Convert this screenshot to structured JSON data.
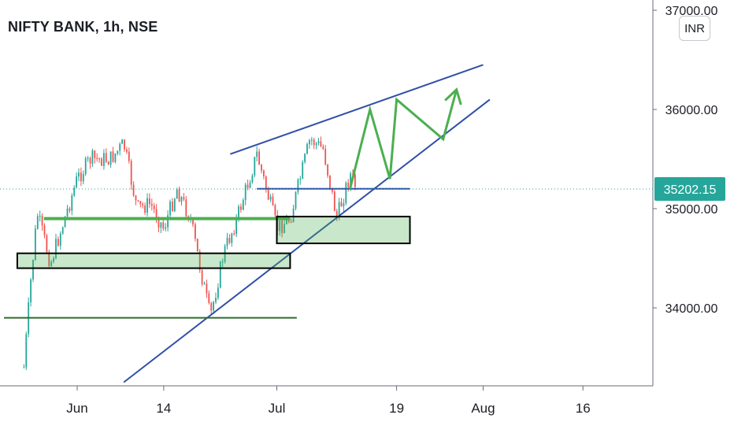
{
  "header": {
    "title": "NIFTY BANK, 1h, NSE",
    "currency": "INR"
  },
  "price_tag": {
    "value": "35202.15",
    "color": "#26a69a"
  },
  "chart_data": {
    "type": "line",
    "title": "NIFTY BANK, 1h, NSE",
    "xlabel": "",
    "ylabel": "",
    "ylim": [
      33200,
      37050
    ],
    "x_ticks": [
      "Jun",
      "14",
      "Jul",
      "19",
      "Aug",
      "16"
    ],
    "y_ticks": [
      "37000.00",
      "36000.00",
      "35000.00",
      "34000.00"
    ],
    "last_price": 35202.15,
    "grid": false,
    "colors": {
      "up": "#26a69a",
      "down": "#ef5350",
      "channel": "#2f4fa8",
      "zone": "#4caf50",
      "projection": "#4caf50",
      "support": "#2e6b2e"
    },
    "price_series": [
      {
        "day": "May 24",
        "close": 33400
      },
      {
        "day": "May 25",
        "close": 34250
      },
      {
        "day": "May 26",
        "close": 34950
      },
      {
        "day": "May 28",
        "close": 34450
      },
      {
        "day": "Jun 1",
        "close": 35300
      },
      {
        "day": "Jun 3",
        "close": 35500
      },
      {
        "day": "Jun 6",
        "close": 35500
      },
      {
        "day": "Jun 8",
        "close": 35650
      },
      {
        "day": "Jun 10",
        "close": 35000
      },
      {
        "day": "Jun 12",
        "close": 35050
      },
      {
        "day": "Jun 14",
        "close": 34800
      },
      {
        "day": "Jun 16",
        "close": 35200
      },
      {
        "day": "Jun 18",
        "close": 34900
      },
      {
        "day": "Jun 21",
        "close": 33900
      },
      {
        "day": "Jun 23",
        "close": 34550
      },
      {
        "day": "Jun 25",
        "close": 34900
      },
      {
        "day": "Jun 28",
        "close": 35550
      },
      {
        "day": "Jul 1",
        "close": 34800
      },
      {
        "day": "Jul 3",
        "close": 34900
      },
      {
        "day": "Jul 6",
        "close": 35700
      },
      {
        "day": "Jul 8",
        "close": 35600
      },
      {
        "day": "Jul 10",
        "close": 34900
      },
      {
        "day": "Jul 12",
        "close": 35350
      },
      {
        "day": "Jul 13",
        "close": 35200
      }
    ],
    "trendlines": [
      {
        "name": "channel-upper",
        "from": {
          "day": "Jun 24",
          "price": 35550
        },
        "to": {
          "day": "Aug 1",
          "price": 36450
        }
      },
      {
        "name": "channel-lower",
        "from": {
          "day": "Jun 8",
          "price": 33250
        },
        "to": {
          "day": "Aug 2",
          "price": 36100
        }
      },
      {
        "name": "resistance-35200",
        "from": {
          "day": "Jun 28",
          "price": 35200
        },
        "to": {
          "day": "Jul 21",
          "price": 35200
        }
      },
      {
        "name": "support-34900",
        "from": {
          "day": "May 27",
          "price": 34900
        },
        "to": {
          "day": "Jul 3",
          "price": 34900
        }
      },
      {
        "name": "support-33900",
        "from": {
          "day": "May 21",
          "price": 33900
        },
        "to": {
          "day": "Jul 4",
          "price": 33900
        }
      }
    ],
    "zones": [
      {
        "name": "demand-zone-1",
        "from": {
          "day": "May 23",
          "price": 34550
        },
        "to": {
          "day": "Jul 3",
          "price": 34400
        }
      },
      {
        "name": "demand-zone-2",
        "from": {
          "day": "Jul 1",
          "price": 34920
        },
        "to": {
          "day": "Jul 21",
          "price": 34650
        }
      }
    ],
    "projection": [
      {
        "day": "Jul 12",
        "price": 35200
      },
      {
        "day": "Jul 15",
        "price": 36000
      },
      {
        "day": "Jul 18",
        "price": 35300
      },
      {
        "day": "Jul 19",
        "price": 36100
      },
      {
        "day": "Jul 26",
        "price": 35700
      },
      {
        "day": "Jul 28",
        "price": 36200
      }
    ]
  }
}
